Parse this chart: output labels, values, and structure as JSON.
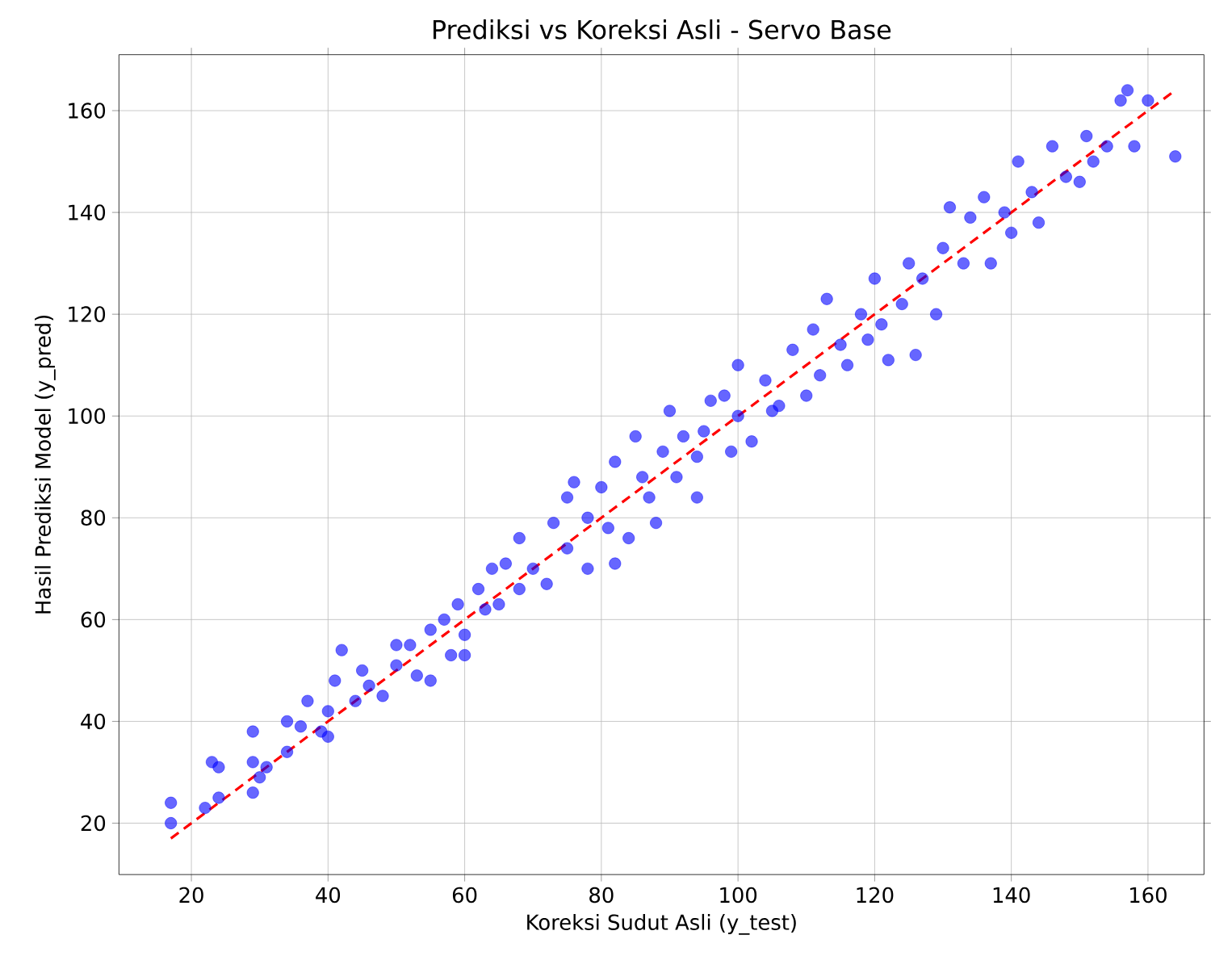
{
  "chart_data": {
    "type": "scatter",
    "title": "Prediksi vs Koreksi Asli - Servo Base",
    "xlabel": "Koreksi Sudut Asli (y_test)",
    "ylabel": "Hasil Prediksi Model (y_pred)",
    "xlim": [
      9.4,
      168.2
    ],
    "ylim": [
      9.9,
      171
    ],
    "xticks": [
      20,
      40,
      60,
      80,
      100,
      120,
      140,
      160
    ],
    "yticks": [
      20,
      40,
      60,
      80,
      100,
      120,
      140,
      160
    ],
    "grid": true,
    "series": [
      {
        "marker": "circle",
        "color": "#0000ff",
        "x": [
          17,
          17,
          22,
          23,
          24,
          24,
          29,
          29,
          29,
          30,
          31,
          34,
          34,
          36,
          37,
          39,
          40,
          40,
          41,
          42,
          44,
          45,
          46,
          48,
          50,
          50,
          52,
          53,
          55,
          55,
          57,
          58,
          59,
          60,
          60,
          62,
          63,
          64,
          65,
          66,
          68,
          68,
          70,
          72,
          73,
          75,
          75,
          76,
          78,
          78,
          80,
          81,
          82,
          82,
          84,
          85,
          86,
          87,
          88,
          89,
          90,
          91,
          92,
          94,
          94,
          95,
          96,
          98,
          99,
          100,
          100,
          102,
          104,
          105,
          106,
          108,
          110,
          111,
          112,
          113,
          115,
          116,
          118,
          119,
          120,
          121,
          122,
          124,
          125,
          126,
          127,
          129,
          130,
          131,
          133,
          134,
          136,
          137,
          139,
          140,
          141,
          143,
          144,
          146,
          148,
          150,
          151,
          152,
          154,
          156,
          157,
          158,
          160,
          164
        ],
        "values": [
          24,
          20,
          23,
          32,
          31,
          25,
          38,
          32,
          26,
          29,
          31,
          40,
          34,
          39,
          44,
          38,
          37,
          42,
          48,
          54,
          44,
          50,
          47,
          45,
          55,
          51,
          55,
          49,
          48,
          58,
          60,
          53,
          63,
          53,
          57,
          66,
          62,
          70,
          63,
          71,
          66,
          76,
          70,
          67,
          79,
          74,
          84,
          87,
          80,
          70,
          86,
          78,
          91,
          71,
          76,
          96,
          88,
          84,
          79,
          93,
          101,
          88,
          96,
          84,
          92,
          97,
          103,
          104,
          93,
          100,
          110,
          95,
          107,
          101,
          102,
          113,
          104,
          117,
          108,
          123,
          114,
          110,
          120,
          115,
          127,
          118,
          111,
          122,
          130,
          112,
          127,
          120,
          133,
          141,
          130,
          139,
          143,
          130,
          140,
          136,
          150,
          144,
          138,
          153,
          147,
          146,
          155,
          150,
          153,
          162,
          164,
          153,
          162,
          151
        ]
      },
      {
        "type": "line",
        "color": "#ff0000",
        "line_style": "dashed",
        "marker": "none",
        "x": [
          17,
          164
        ],
        "values": [
          17,
          164
        ]
      }
    ]
  }
}
